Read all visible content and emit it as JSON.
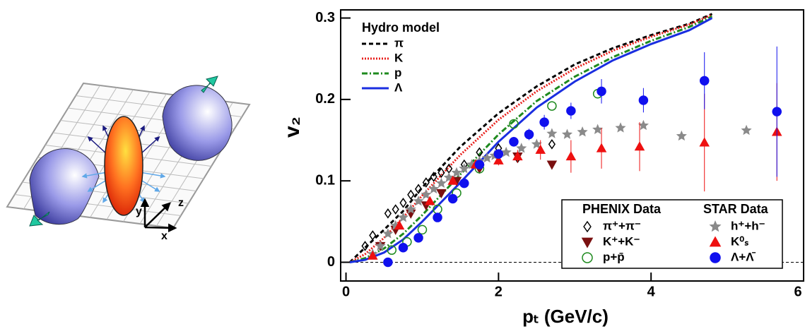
{
  "diagram": {
    "axes": [
      "x",
      "y",
      "z"
    ]
  },
  "chart_data": {
    "type": "scatter",
    "x_label": "pₜ (GeV/c)",
    "y_label": "v₂",
    "xlim": [
      -0.07,
      6.0
    ],
    "ylim": [
      -0.023,
      0.31
    ],
    "xticks": [
      0,
      2,
      4,
      6
    ],
    "yticks": [
      0,
      0.1,
      0.2,
      0.3
    ],
    "zero_line": true,
    "groups": [
      {
        "title": "Hydro model",
        "series": [
          {
            "name": "π",
            "color": "#000000",
            "style": "dashed",
            "x": [
              0.05,
              0.25,
              0.5,
              0.75,
              1,
              1.5,
              2,
              2.5,
              3,
              3.5,
              4,
              4.5,
              4.8
            ],
            "values": [
              0,
              0.018,
              0.04,
              0.063,
              0.092,
              0.142,
              0.183,
              0.216,
              0.243,
              0.263,
              0.279,
              0.293,
              0.305
            ]
          },
          {
            "name": "K",
            "color": "#e8201c",
            "style": "dotted",
            "x": [
              0.05,
              0.25,
              0.5,
              0.75,
              1,
              1.5,
              2,
              2.5,
              3,
              3.5,
              4,
              4.5,
              4.8
            ],
            "values": [
              0,
              0.01,
              0.03,
              0.055,
              0.082,
              0.132,
              0.175,
              0.21,
              0.238,
              0.26,
              0.277,
              0.292,
              0.304
            ]
          },
          {
            "name": "p",
            "color": "#1e8a1e",
            "style": "dashdot",
            "x": [
              0.05,
              0.25,
              0.5,
              0.75,
              1,
              1.5,
              2,
              2.5,
              3,
              3.5,
              4,
              4.5,
              4.8
            ],
            "values": [
              0,
              0.005,
              0.017,
              0.035,
              0.058,
              0.108,
              0.157,
              0.198,
              0.228,
              0.252,
              0.272,
              0.289,
              0.302
            ]
          },
          {
            "name": "Λ",
            "color": "#1a2ee0",
            "style": "solid",
            "x": [
              0.05,
              0.25,
              0.5,
              0.75,
              1,
              1.5,
              2,
              2.5,
              3,
              3.5,
              4,
              4.5,
              4.8
            ],
            "values": [
              0,
              0.003,
              0.012,
              0.028,
              0.05,
              0.098,
              0.148,
              0.19,
              0.222,
              0.248,
              0.268,
              0.285,
              0.3
            ]
          }
        ]
      },
      {
        "title": "PHENIX Data",
        "series": [
          {
            "name": "π⁺+π⁻",
            "color": "#000000",
            "marker": "diamond-open",
            "x": [
              0.25,
              0.35,
              0.55,
              0.65,
              0.75,
              0.85,
              0.95,
              1.05,
              1.15,
              1.25,
              1.35,
              1.55,
              1.75,
              2.0,
              2.25,
              2.7
            ],
            "values": [
              0.02,
              0.033,
              0.06,
              0.065,
              0.073,
              0.083,
              0.09,
              0.098,
              0.105,
              0.11,
              0.115,
              0.12,
              0.135,
              0.14,
              0.128,
              0.145
            ]
          },
          {
            "name": "K⁺+K⁻",
            "color": "#7a1010",
            "marker": "triangle-down",
            "x": [
              0.45,
              0.65,
              0.85,
              1.05,
              1.25,
              1.45,
              1.75,
              2.25,
              2.7
            ],
            "values": [
              0.02,
              0.04,
              0.06,
              0.07,
              0.085,
              0.1,
              0.115,
              0.13,
              0.12
            ]
          },
          {
            "name": "p+p̄",
            "color": "#1e8a1e",
            "marker": "circle-open",
            "x": [
              0.6,
              0.8,
              1.0,
              1.2,
              1.45,
              1.75,
              2.2,
              2.7,
              3.3
            ],
            "values": [
              0.015,
              0.025,
              0.04,
              0.065,
              0.085,
              0.115,
              0.17,
              0.192,
              0.207
            ]
          }
        ]
      },
      {
        "title": "STAR Data",
        "series": [
          {
            "name": "h⁺+h⁻",
            "color": "#8a8a8a",
            "marker": "star",
            "x": [
              0.35,
              0.45,
              0.55,
              0.65,
              0.75,
              0.85,
              0.95,
              1.05,
              1.15,
              1.25,
              1.35,
              1.45,
              1.55,
              1.65,
              1.75,
              1.85,
              1.95,
              2.1,
              2.3,
              2.5,
              2.7,
              2.9,
              3.1,
              3.3,
              3.6,
              3.9,
              4.4,
              5.25
            ],
            "values": [
              0.01,
              0.02,
              0.035,
              0.045,
              0.055,
              0.065,
              0.075,
              0.083,
              0.09,
              0.097,
              0.104,
              0.11,
              0.115,
              0.12,
              0.124,
              0.128,
              0.131,
              0.135,
              0.14,
              0.145,
              0.158,
              0.157,
              0.16,
              0.163,
              0.165,
              0.168,
              0.155,
              0.162
            ]
          },
          {
            "name": "K⁰ₛ",
            "color": "#ee1010",
            "marker": "triangle-up",
            "x": [
              0.35,
              0.7,
              1.1,
              1.4,
              1.7,
              2.0,
              2.25,
              2.55,
              2.95,
              3.35,
              3.85,
              4.7,
              5.65
            ],
            "values": [
              0.008,
              0.045,
              0.075,
              0.1,
              0.12,
              0.125,
              0.13,
              0.138,
              0.13,
              0.14,
              0.142,
              0.147,
              0.16
            ],
            "errors": [
              0.004,
              0.004,
              0.004,
              0.004,
              0.005,
              0.006,
              0.008,
              0.012,
              0.02,
              0.025,
              0.03,
              0.06,
              0.06
            ]
          },
          {
            "name": "Λ+Λ̄",
            "color": "#1010ee",
            "marker": "circle",
            "x": [
              0.55,
              0.75,
              0.95,
              1.2,
              1.4,
              1.55,
              1.75,
              2.0,
              2.2,
              2.4,
              2.6,
              2.95,
              3.35,
              3.9,
              4.7,
              5.65
            ],
            "values": [
              0.0,
              0.018,
              0.03,
              0.055,
              0.078,
              0.097,
              0.12,
              0.133,
              0.148,
              0.157,
              0.172,
              0.186,
              0.21,
              0.199,
              0.223,
              0.185
            ],
            "errors": [
              0.005,
              0.004,
              0.004,
              0.004,
              0.004,
              0.004,
              0.005,
              0.005,
              0.006,
              0.007,
              0.009,
              0.01,
              0.015,
              0.015,
              0.035,
              0.08
            ]
          }
        ]
      }
    ]
  }
}
